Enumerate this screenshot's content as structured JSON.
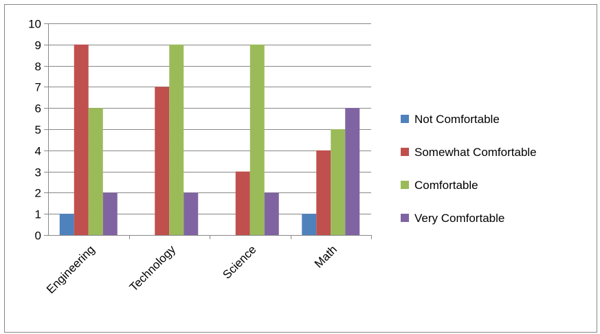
{
  "chart_data": {
    "type": "bar",
    "categories": [
      "Engineering",
      "Technology",
      "Science",
      "Math"
    ],
    "series": [
      {
        "name": "Not Comfortable",
        "color": "#4f81bd",
        "values": [
          1,
          0,
          0,
          1
        ]
      },
      {
        "name": "Somewhat Comfortable",
        "color": "#c0504d",
        "values": [
          9,
          7,
          3,
          4
        ]
      },
      {
        "name": "Comfortable",
        "color": "#9bbb59",
        "values": [
          6,
          9,
          9,
          5
        ]
      },
      {
        "name": "Very Comfortable",
        "color": "#8064a2",
        "values": [
          2,
          2,
          2,
          6
        ]
      }
    ],
    "title": "",
    "xlabel": "",
    "ylabel": "",
    "ylim": [
      0,
      10
    ],
    "yticks": [
      "0",
      "1",
      "2",
      "3",
      "4",
      "5",
      "6",
      "7",
      "8",
      "9",
      "10"
    ],
    "grid": true,
    "legend": "right"
  }
}
